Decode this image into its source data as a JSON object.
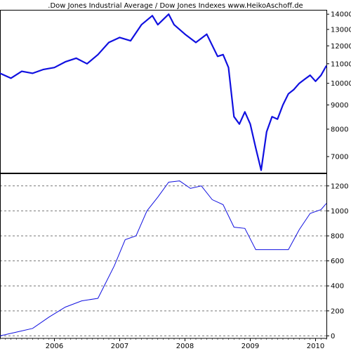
{
  "chart_data": [
    {
      "type": "line",
      "title": ".Dow Jones Industrial Average / Dow Jones Indexes www.HeikoAschoff.de",
      "xlabel": "",
      "ylabel": "",
      "x_range": [
        "2005-03",
        "2010-03"
      ],
      "ylim": [
        6450,
        14300
      ],
      "y_scale": "log",
      "y_ticks": [
        7000,
        8000,
        9000,
        10000,
        11000,
        12000,
        13000,
        14000
      ],
      "grid": false,
      "line_color": "#1010e0",
      "series": [
        {
          "x": [
            "2005-03",
            "2005-05",
            "2005-07",
            "2005-09",
            "2005-11",
            "2006-01",
            "2006-03",
            "2006-05",
            "2006-07",
            "2006-09",
            "2006-11",
            "2007-01",
            "2007-03",
            "2007-05",
            "2007-07",
            "2007-08",
            "2007-10",
            "2007-11",
            "2008-01",
            "2008-03",
            "2008-05",
            "2008-07",
            "2008-08",
            "2008-09",
            "2008-10",
            "2008-11",
            "2008-12",
            "2009-01",
            "2009-02",
            "2009-03",
            "2009-04",
            "2009-05",
            "2009-06",
            "2009-07",
            "2009-08",
            "2009-09",
            "2009-10",
            "2009-11",
            "2009-12",
            "2010-01",
            "2010-02",
            "2010-03"
          ],
          "values": [
            10500,
            10250,
            10600,
            10500,
            10700,
            10800,
            11100,
            11300,
            11000,
            11500,
            12200,
            12500,
            12300,
            13300,
            13900,
            13300,
            14000,
            13300,
            12700,
            12200,
            12700,
            11400,
            11500,
            10800,
            8500,
            8200,
            8700,
            8200,
            7300,
            6550,
            7900,
            8500,
            8400,
            9000,
            9500,
            9700,
            10000,
            10200,
            10400,
            10100,
            10400,
            10900
          ]
        }
      ]
    },
    {
      "type": "line",
      "title": "",
      "xlabel": "",
      "ylabel": "",
      "x_range": [
        "2005-03",
        "2010-03"
      ],
      "ylim": [
        -20,
        1300
      ],
      "y_ticks": [
        0,
        200,
        400,
        600,
        800,
        1000,
        1200
      ],
      "grid": true,
      "line_color": "#1010e0",
      "x_tick_labels": [
        "2006",
        "2007",
        "2008",
        "2009",
        "2010"
      ],
      "x_ticks": [
        "2006-01",
        "2007-01",
        "2008-01",
        "2009-01",
        "2010-01"
      ],
      "series": [
        {
          "x": [
            "2005-03",
            "2005-06",
            "2005-09",
            "2005-12",
            "2006-03",
            "2006-06",
            "2006-09",
            "2006-12",
            "2007-02",
            "2007-04",
            "2007-06",
            "2007-08",
            "2007-10",
            "2007-12",
            "2008-02",
            "2008-04",
            "2008-06",
            "2008-08",
            "2008-10",
            "2008-12",
            "2009-02",
            "2009-04",
            "2009-06",
            "2009-08",
            "2009-10",
            "2009-12",
            "2010-02",
            "2010-03"
          ],
          "values": [
            0,
            30,
            60,
            150,
            230,
            280,
            300,
            560,
            770,
            800,
            1000,
            1110,
            1230,
            1240,
            1180,
            1200,
            1090,
            1050,
            870,
            860,
            690,
            690,
            690,
            690,
            850,
            980,
            1010,
            1060
          ]
        }
      ]
    }
  ]
}
